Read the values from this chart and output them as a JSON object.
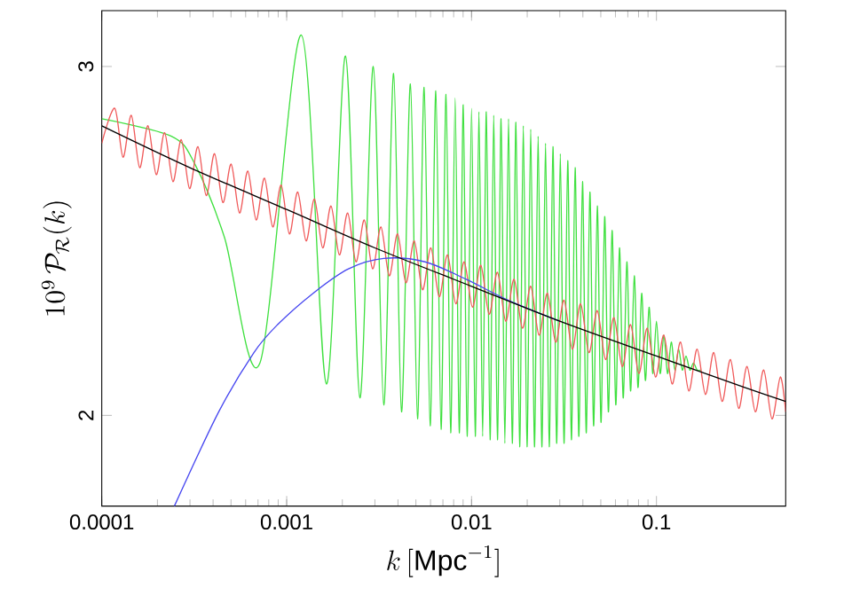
{
  "chart_data": {
    "type": "line",
    "log": "x",
    "xlabel": "k\\,[\\mathrm{Mpc}^{-1}]",
    "ylabel": "10^{9}\\,\\mathcal{P}_{\\mathcal{R}}(k)",
    "xlim": [
      0.0001,
      0.5
    ],
    "ylim": [
      1.74,
      3.16
    ],
    "xticks": [
      0.0001,
      0.001,
      0.01,
      0.1
    ],
    "yticks": [
      2,
      3
    ],
    "grid": false,
    "marker": "none",
    "line_style": "solid",
    "series": [
      {
        "color": "#40e040",
        "x": [
          0.0001,
          0.000238,
          0.000319,
          0.000461,
          0.000717,
          0.0012,
          0.00164,
          0.00208,
          0.00249,
          0.00294,
          0.00335,
          0.00379,
          0.00418,
          0.00467,
          0.0051,
          0.00554,
          0.00597,
          0.00641,
          0.00684,
          0.00728,
          0.00771,
          0.00815,
          0.00858,
          0.00902,
          0.00946,
          0.01,
          0.01047,
          0.01096,
          0.01148,
          0.01202,
          0.01259,
          0.01318,
          0.0138,
          0.01445,
          0.01514,
          0.01585,
          0.0166,
          0.01738,
          0.0182,
          0.01905,
          0.01995,
          0.02089,
          0.02188,
          0.02291,
          0.02399,
          0.02512,
          0.0263,
          0.02754,
          0.02884,
          0.0302,
          0.03162,
          0.03311,
          0.03467,
          0.03631,
          0.03802,
          0.03981,
          0.04169,
          0.04365,
          0.04571,
          0.04786,
          0.05012,
          0.05248,
          0.05495,
          0.05754,
          0.06026,
          0.0631,
          0.06607,
          0.06918,
          0.07244,
          0.07586,
          0.07943,
          0.08318,
          0.0871,
          0.0912,
          0.0955,
          0.1,
          0.1047,
          0.1096,
          0.1148,
          0.1202,
          0.1259,
          0.1318,
          0.138,
          0.1445,
          0.1514,
          0.1585,
          0.166,
          0.1738
        ],
        "values": [
          2.85,
          2.8,
          2.72,
          2.51,
          2.15,
          3.09,
          2.09,
          3.03,
          2.05,
          3.0,
          2.03,
          2.98,
          2.01,
          2.95,
          1.99,
          2.94,
          1.97,
          2.93,
          1.96,
          2.92,
          1.95,
          2.91,
          1.95,
          2.89,
          1.94,
          2.88,
          1.94,
          2.87,
          1.94,
          2.87,
          1.93,
          2.86,
          1.93,
          2.85,
          1.92,
          2.85,
          1.92,
          2.84,
          1.91,
          2.83,
          1.91,
          2.82,
          1.91,
          2.8,
          1.91,
          2.78,
          1.91,
          2.77,
          1.92,
          2.75,
          1.92,
          2.73,
          1.93,
          2.71,
          1.94,
          2.67,
          1.95,
          2.64,
          1.97,
          2.6,
          1.98,
          2.57,
          2.01,
          2.53,
          2.03,
          2.48,
          2.05,
          2.44,
          2.07,
          2.4,
          2.08,
          2.35,
          2.1,
          2.31,
          2.12,
          2.27,
          2.12,
          2.23,
          2.12,
          2.21,
          2.13,
          2.19,
          2.13,
          2.17,
          2.13,
          2.15,
          2.13,
          2.13
        ]
      },
      {
        "color": "#f05a5a",
        "x": [
          0.0001,
          0.0001175,
          0.0001303,
          0.0001445,
          0.0001603,
          0.0001778,
          0.0001972,
          0.0002188,
          0.0002427,
          0.0002692,
          0.0002985,
          0.0003311,
          0.0003673,
          0.0004074,
          0.0004519,
          0.0005012,
          0.0005559,
          0.0006166,
          0.0006839,
          0.0007586,
          0.0008414,
          0.0009333,
          0.001035,
          0.001148,
          0.001274,
          0.001413,
          0.001567,
          0.001738,
          0.001928,
          0.002138,
          0.002371,
          0.00263,
          0.002917,
          0.003236,
          0.003589,
          0.003981,
          0.004416,
          0.004898,
          0.005433,
          0.006026,
          0.006683,
          0.007413,
          0.008222,
          0.00912,
          0.01012,
          0.01122,
          0.01245,
          0.0138,
          0.01531,
          0.01698,
          0.01884,
          0.02089,
          0.02317,
          0.0257,
          0.02851,
          0.03162,
          0.03508,
          0.0389,
          0.04315,
          0.04786,
          0.05309,
          0.05888,
          0.06531,
          0.07244,
          0.08035,
          0.08913,
          0.09886,
          0.1096,
          0.1216,
          0.1349,
          0.1496,
          0.166,
          0.1841,
          0.2042,
          0.2265,
          0.2512,
          0.2786,
          0.309,
          0.3428,
          0.3802,
          0.4217,
          0.4677,
          0.5
        ],
        "values": [
          2.78,
          2.88,
          2.74,
          2.86,
          2.71,
          2.83,
          2.69,
          2.81,
          2.67,
          2.79,
          2.65,
          2.77,
          2.63,
          2.75,
          2.61,
          2.72,
          2.58,
          2.7,
          2.56,
          2.68,
          2.54,
          2.66,
          2.52,
          2.64,
          2.5,
          2.62,
          2.48,
          2.6,
          2.46,
          2.58,
          2.44,
          2.56,
          2.42,
          2.54,
          2.4,
          2.52,
          2.38,
          2.5,
          2.36,
          2.48,
          2.34,
          2.46,
          2.32,
          2.44,
          2.31,
          2.43,
          2.29,
          2.41,
          2.27,
          2.39,
          2.25,
          2.37,
          2.23,
          2.35,
          2.21,
          2.33,
          2.19,
          2.32,
          2.18,
          2.3,
          2.16,
          2.28,
          2.14,
          2.26,
          2.12,
          2.25,
          2.11,
          2.23,
          2.09,
          2.21,
          2.07,
          2.19,
          2.06,
          2.18,
          2.04,
          2.16,
          2.02,
          2.14,
          2.01,
          2.13,
          1.99,
          2.11,
          2.01
        ]
      },
      {
        "color": "#4848f0",
        "x": [
          0.000247,
          0.000429,
          0.000665,
          0.000893,
          0.00139,
          0.00216,
          0.00335,
          0.0056,
          0.00935,
          0.0158,
          0.03
        ],
        "values": [
          1.74,
          2.01,
          2.18,
          2.26,
          2.35,
          2.42,
          2.45,
          2.44,
          2.39,
          2.33,
          2.27
        ]
      },
      {
        "color": "#000000",
        "x": [
          0.0001,
          0.0003,
          0.001,
          0.003,
          0.01,
          0.03,
          0.1,
          0.3,
          0.5
        ],
        "values": [
          2.83,
          2.71,
          2.59,
          2.48,
          2.37,
          2.27,
          2.17,
          2.08,
          2.04
        ]
      }
    ]
  }
}
